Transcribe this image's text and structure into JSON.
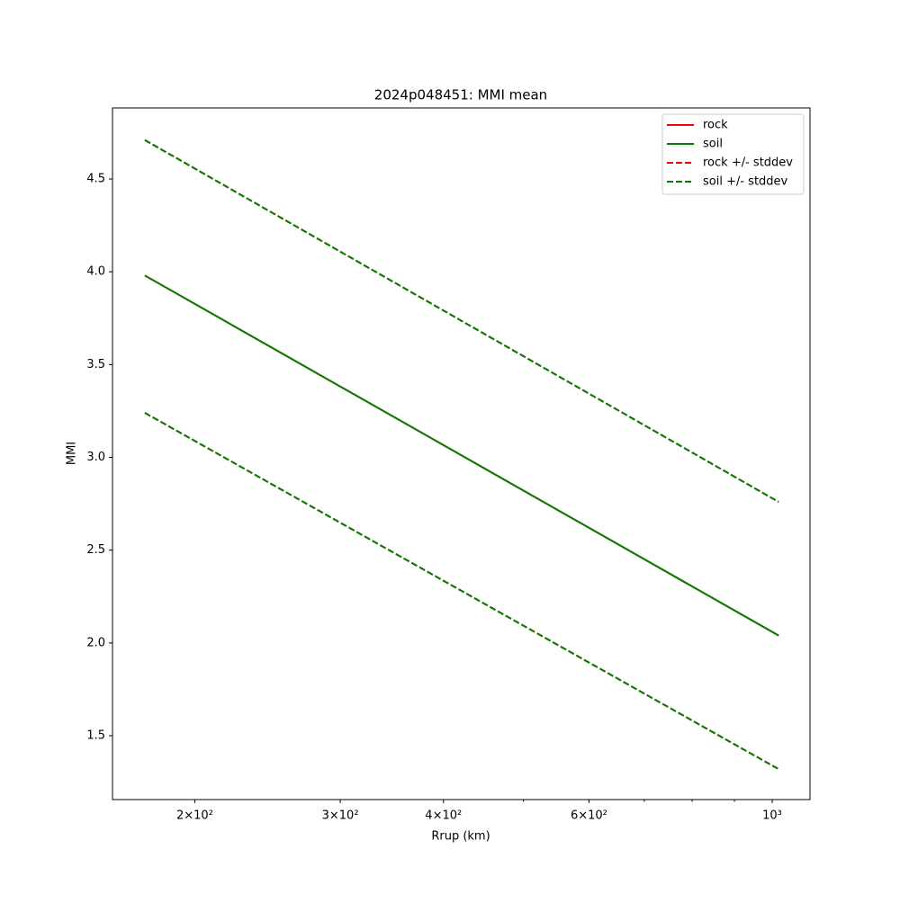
{
  "chart_data": {
    "type": "line",
    "title": "2024p048451: MMI mean",
    "x_label": "Rrup (km)",
    "y_label": "MMI",
    "x": [
      174,
      1018
    ],
    "series": [
      {
        "name": "rock",
        "color": "#ff0000",
        "style": "solid",
        "values": [
          3.98,
          2.04
        ]
      },
      {
        "name": "soil",
        "color": "#008000",
        "style": "solid",
        "values": [
          3.98,
          2.04
        ]
      },
      {
        "name": "rock +/- stddev",
        "color": "#ff0000",
        "style": "dashed",
        "upper": [
          4.71,
          2.76
        ],
        "lower": [
          3.24,
          1.32
        ]
      },
      {
        "name": "soil +/- stddev",
        "color": "#008000",
        "style": "dashed",
        "upper": [
          4.71,
          2.76
        ],
        "lower": [
          3.24,
          1.32
        ]
      }
    ],
    "xscale": "log",
    "xlim": [
      159,
      1111
    ],
    "xticks": [
      {
        "value": 200,
        "label": "2×10²"
      },
      {
        "value": 300,
        "label": "3×10²"
      },
      {
        "value": 400,
        "label": "4×10²"
      },
      {
        "value": 600,
        "label": "6×10²"
      },
      {
        "value": 1000,
        "label": "10³"
      }
    ],
    "xminorticks": [
      500,
      700,
      800,
      900
    ],
    "ylim": [
      1.156,
      4.883
    ],
    "yticks": [
      1.5,
      {
        "value": 2,
        "label": "2.0"
      },
      2.5,
      {
        "value": 3,
        "label": "3.0"
      },
      3.5,
      {
        "value": 4,
        "label": "4.0"
      },
      4.5
    ],
    "legend": "upper right",
    "grid": false
  }
}
